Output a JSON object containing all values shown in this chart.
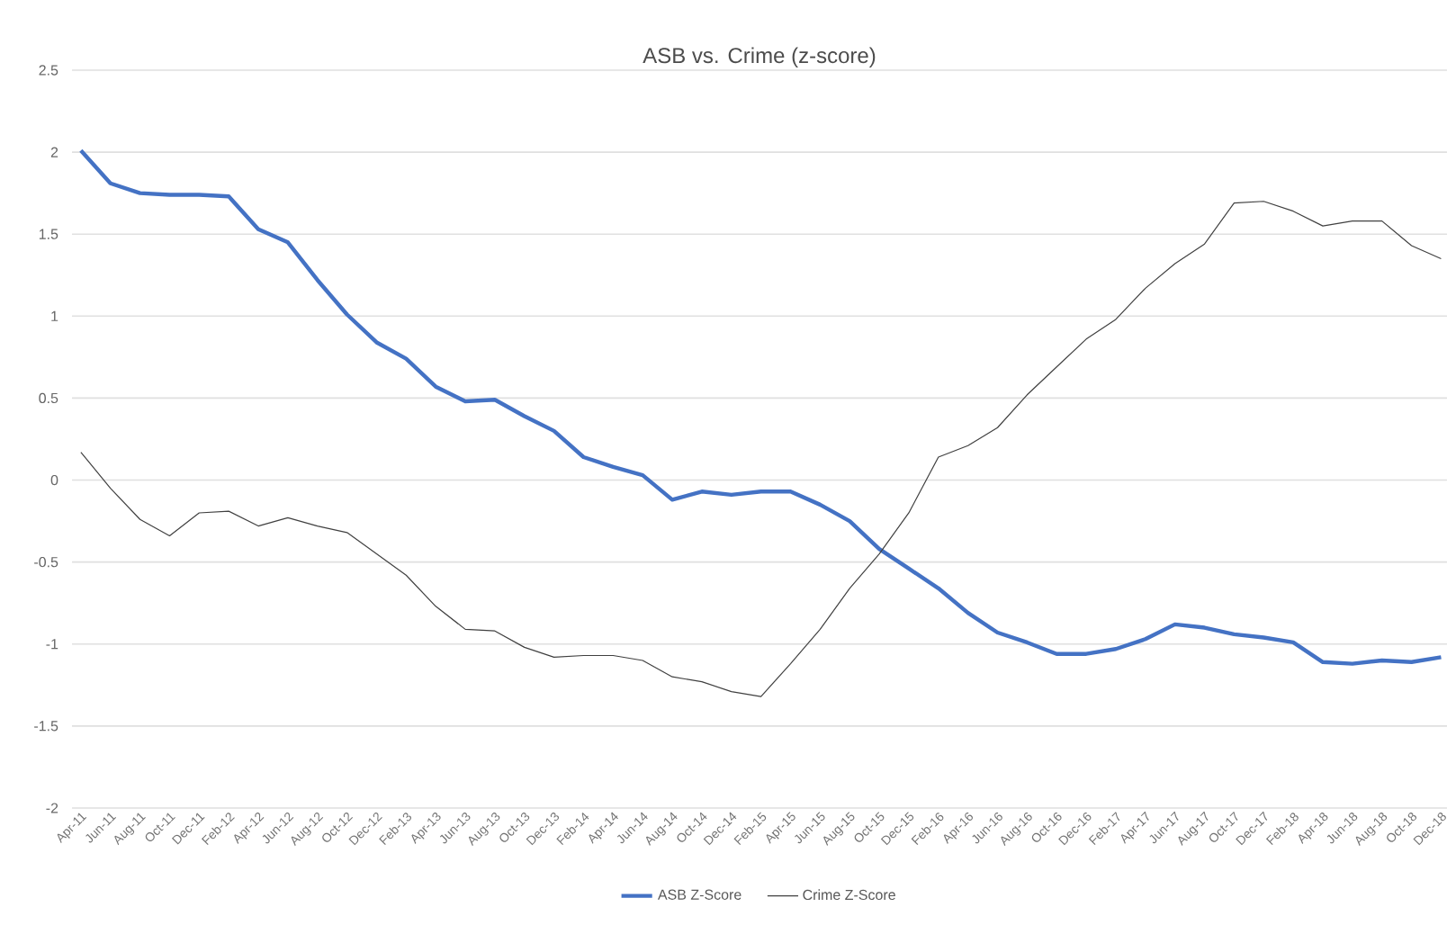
{
  "chart_data": {
    "type": "line",
    "title": "ASB vs. Crime (z-score)",
    "categories": [
      "Apr-11",
      "Jun-11",
      "Aug-11",
      "Oct-11",
      "Dec-11",
      "Feb-12",
      "Apr-12",
      "Jun-12",
      "Aug-12",
      "Oct-12",
      "Dec-12",
      "Feb-13",
      "Apr-13",
      "Jun-13",
      "Aug-13",
      "Oct-13",
      "Dec-13",
      "Feb-14",
      "Apr-14",
      "Jun-14",
      "Aug-14",
      "Oct-14",
      "Dec-14",
      "Feb-15",
      "Apr-15",
      "Jun-15",
      "Aug-15",
      "Oct-15",
      "Dec-15",
      "Feb-16",
      "Apr-16",
      "Jun-16",
      "Aug-16",
      "Oct-16",
      "Dec-16",
      "Feb-17",
      "Apr-17",
      "Jun-17",
      "Aug-17",
      "Oct-17",
      "Dec-17",
      "Feb-18",
      "Apr-18",
      "Jun-18",
      "Aug-18",
      "Oct-18",
      "Dec-18"
    ],
    "series": [
      {
        "name": "ASB Z-Score",
        "color": "#4472c4",
        "values": [
          2.01,
          1.81,
          1.75,
          1.74,
          1.74,
          1.73,
          1.53,
          1.45,
          1.22,
          1.01,
          0.84,
          0.74,
          0.57,
          0.48,
          0.49,
          0.39,
          0.3,
          0.14,
          0.08,
          0.03,
          -0.12,
          -0.07,
          -0.09,
          -0.07,
          -0.07,
          -0.15,
          -0.25,
          -0.42,
          -0.54,
          -0.66,
          -0.81,
          -0.93,
          -0.99,
          -1.06,
          -1.06,
          -1.03,
          -0.97,
          -0.88,
          -0.9,
          -0.94,
          -0.96,
          -0.99,
          -1.11,
          -1.12,
          -1.1,
          -1.11,
          -1.08
        ]
      },
      {
        "name": "Crime Z-Score",
        "color": "#404040",
        "values": [
          0.17,
          -0.05,
          -0.24,
          -0.34,
          -0.2,
          -0.19,
          -0.28,
          -0.23,
          -0.28,
          -0.32,
          -0.45,
          -0.58,
          -0.77,
          -0.91,
          -0.92,
          -1.02,
          -1.08,
          -1.07,
          -1.07,
          -1.1,
          -1.2,
          -1.23,
          -1.29,
          -1.32,
          -1.12,
          -0.91,
          -0.66,
          -0.45,
          -0.2,
          0.14,
          0.21,
          0.32,
          0.52,
          0.69,
          0.86,
          0.98,
          1.17,
          1.32,
          1.44,
          1.69,
          1.7,
          1.64,
          1.55,
          1.58,
          1.58,
          1.43,
          1.35
        ]
      }
    ],
    "ylim": [
      -2,
      2.5
    ],
    "yticks": [
      -2,
      -1.5,
      -1,
      -0.5,
      0,
      0.5,
      1,
      1.5,
      2,
      2.5
    ],
    "grid": "y",
    "legend": "bottom",
    "marker": "none",
    "line_style": "solid"
  }
}
